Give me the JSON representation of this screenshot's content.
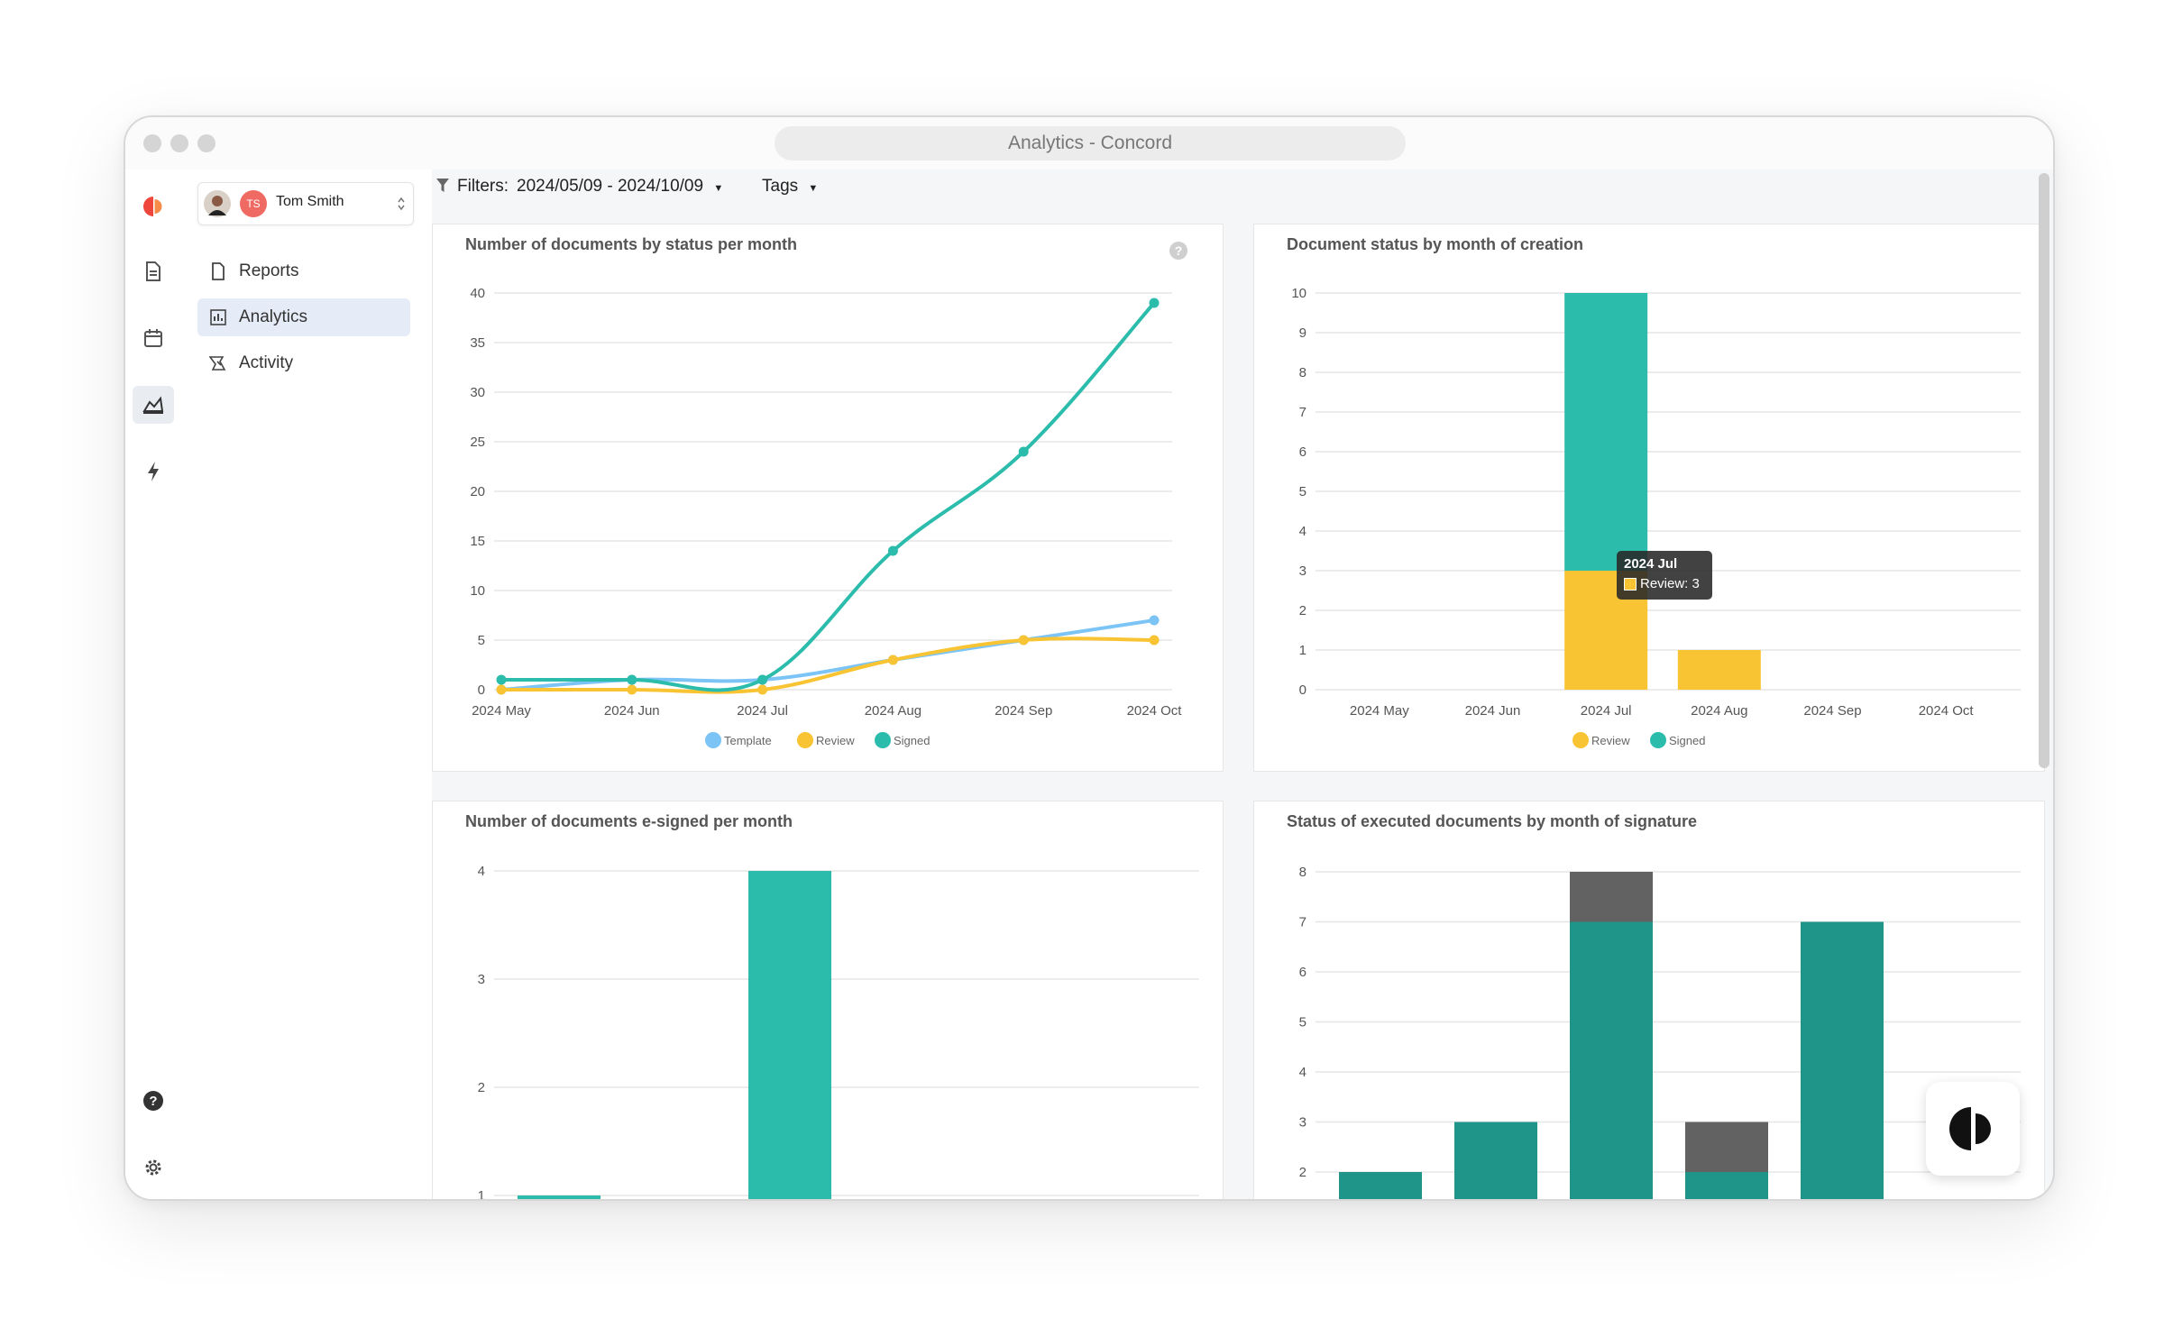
{
  "window": {
    "title": "Analytics - Concord"
  },
  "account": {
    "initials": "TS",
    "name": "Tom Smith"
  },
  "nav": [
    {
      "label": "Reports",
      "icon": "document-icon"
    },
    {
      "label": "Analytics",
      "icon": "chart-icon",
      "active": true
    },
    {
      "label": "Activity",
      "icon": "activity-icon"
    }
  ],
  "rail": [
    "concord-logo-icon",
    "document-icon",
    "calendar-icon",
    "analytics-icon",
    "bolt-icon",
    "help-icon",
    "gear-icon"
  ],
  "filters": {
    "label": "Filters:",
    "date_range": "2024/05/09 - 2024/10/09",
    "tags": "Tags"
  },
  "colors": {
    "template": "#7cc4f5",
    "review": "#f9c433",
    "signed": "#2bbcab",
    "signed_dark": "#1f9488",
    "other": "#626262"
  },
  "chart_data": [
    {
      "type": "line",
      "title": "Number of documents by status per month",
      "categories": [
        "2024 May",
        "2024 Jun",
        "2024 Jul",
        "2024 Aug",
        "2024 Sep",
        "2024 Oct"
      ],
      "y_ticks": [
        0,
        5,
        10,
        15,
        20,
        25,
        30,
        35,
        40
      ],
      "ylim": [
        0,
        40
      ],
      "series": [
        {
          "name": "Template",
          "color": "#7cc4f5",
          "values": [
            0,
            1,
            1,
            3,
            5,
            7
          ]
        },
        {
          "name": "Review",
          "color": "#f9c433",
          "values": [
            0,
            0,
            0,
            3,
            5,
            5
          ]
        },
        {
          "name": "Signed",
          "color": "#2bbcab",
          "values": [
            1,
            1,
            1,
            14,
            24,
            39
          ]
        }
      ],
      "legend": "bottom",
      "grid": true
    },
    {
      "type": "bar",
      "stacked": true,
      "title": "Document status by month of creation",
      "categories": [
        "2024 May",
        "2024 Jun",
        "2024 Jul",
        "2024 Aug",
        "2024 Sep",
        "2024 Oct"
      ],
      "y_ticks": [
        0,
        1,
        2,
        3,
        4,
        5,
        6,
        7,
        8,
        9,
        10
      ],
      "ylim": [
        0,
        10
      ],
      "series": [
        {
          "name": "Review",
          "color": "#f9c433",
          "values": [
            0,
            0,
            3,
            1,
            0,
            0
          ]
        },
        {
          "name": "Signed",
          "color": "#2bbcab",
          "values": [
            0,
            0,
            7,
            0,
            0,
            0
          ]
        }
      ],
      "tooltip": {
        "title": "2024 Jul",
        "text": "Review: 3"
      },
      "legend": "bottom",
      "grid": true
    },
    {
      "type": "bar",
      "title": "Number of documents e-signed per month",
      "y_ticks": [
        1,
        2,
        3,
        4
      ],
      "series": [
        {
          "color": "#2bbcab",
          "values": [
            1,
            0,
            4
          ]
        }
      ],
      "grid": true
    },
    {
      "type": "bar",
      "stacked": true,
      "title": "Status of executed documents by month of signature",
      "y_ticks": [
        2,
        3,
        4,
        5,
        6,
        7,
        8
      ],
      "series": [
        {
          "color": "#2bbcab",
          "values": [
            0,
            0,
            1,
            0,
            0
          ]
        },
        {
          "color": "#1f9488",
          "values": [
            2,
            3,
            6,
            2,
            7
          ]
        },
        {
          "color": "#626262",
          "values": [
            0,
            0,
            1,
            1,
            0
          ]
        }
      ],
      "grid": true
    }
  ]
}
